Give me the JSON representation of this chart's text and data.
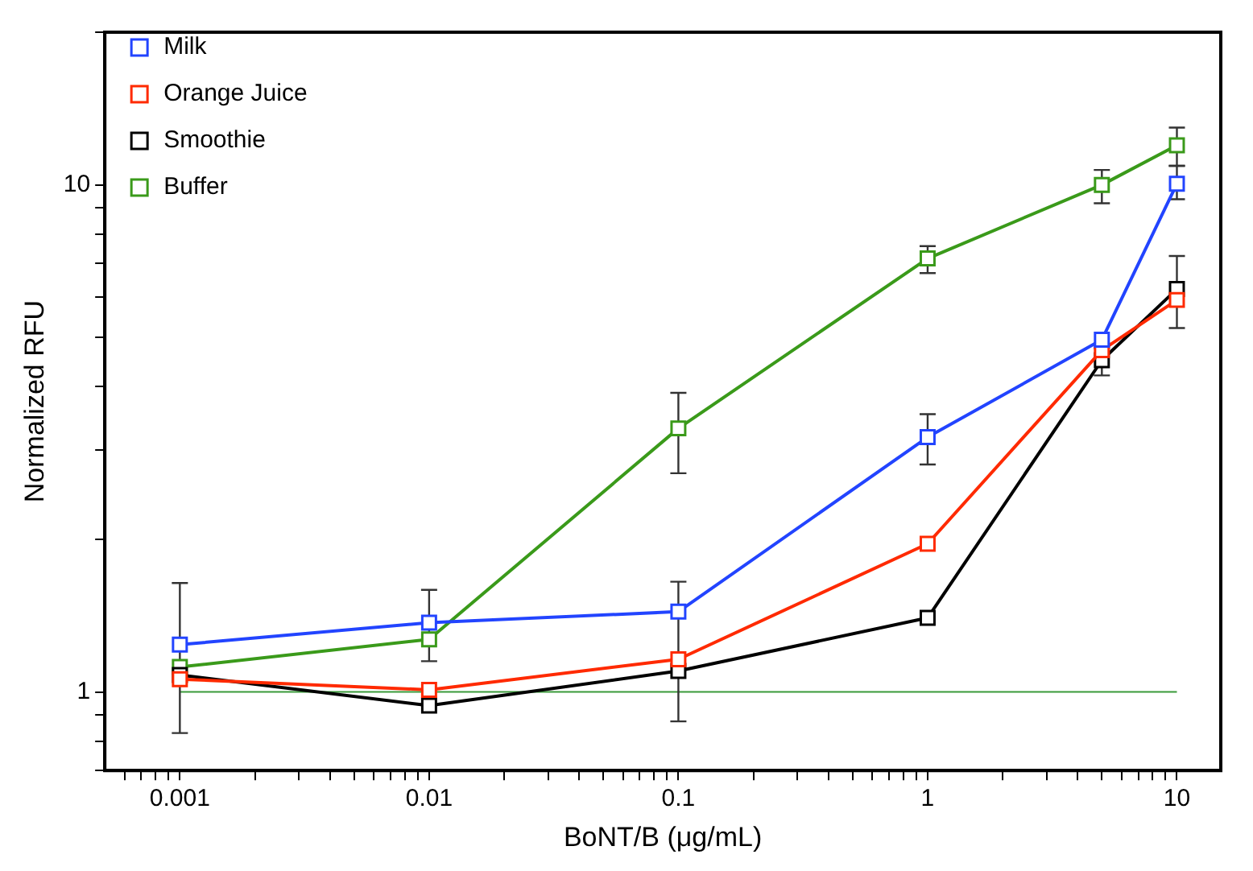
{
  "chart_data": {
    "type": "line",
    "xlabel": "BoNT/B (μg/mL)",
    "ylabel": "Normalized RFU",
    "log": "xy",
    "marker": "square",
    "line_style": "solid",
    "grid": false,
    "legend": "top left",
    "x": [
      0.001,
      0.01,
      0.1,
      1,
      5,
      10
    ],
    "xlim": [
      0.0005,
      15
    ],
    "ylim": [
      0.7,
      20
    ],
    "xticks": [
      0.001,
      0.01,
      0.1,
      1,
      10,
      {
        "value": 0.0006,
        "label": null
      },
      {
        "value": 0.0007,
        "label": null
      },
      {
        "value": 0.0008,
        "label": null
      },
      {
        "value": 0.0009,
        "label": null
      },
      {
        "value": 0.002,
        "label": null
      },
      {
        "value": 0.003,
        "label": null
      },
      {
        "value": 0.004,
        "label": null
      },
      {
        "value": 0.005,
        "label": null
      },
      {
        "value": 0.006,
        "label": null
      },
      {
        "value": 0.007,
        "label": null
      },
      {
        "value": 0.008,
        "label": null
      },
      {
        "value": 0.009,
        "label": null
      },
      {
        "value": 0.02,
        "label": null
      },
      {
        "value": 0.03,
        "label": null
      },
      {
        "value": 0.04,
        "label": null
      },
      {
        "value": 0.05,
        "label": null
      },
      {
        "value": 0.06,
        "label": null
      },
      {
        "value": 0.07,
        "label": null
      },
      {
        "value": 0.08,
        "label": null
      },
      {
        "value": 0.09,
        "label": null
      },
      {
        "value": 0.2,
        "label": null
      },
      {
        "value": 0.3,
        "label": null
      },
      {
        "value": 0.4,
        "label": null
      },
      {
        "value": 0.5,
        "label": null
      },
      {
        "value": 0.6,
        "label": null
      },
      {
        "value": 0.7,
        "label": null
      },
      {
        "value": 0.8,
        "label": null
      },
      {
        "value": 0.9,
        "label": null
      },
      {
        "value": 2,
        "label": null
      },
      {
        "value": 3,
        "label": null
      },
      {
        "value": 4,
        "label": null
      },
      {
        "value": 5,
        "label": null
      },
      {
        "value": 6,
        "label": null
      },
      {
        "value": 7,
        "label": null
      },
      {
        "value": 8,
        "label": null
      },
      {
        "value": 9,
        "label": null
      }
    ],
    "yticks": [
      1,
      10,
      {
        "value": 0.7,
        "label": null
      },
      {
        "value": 0.8,
        "label": null
      },
      {
        "value": 0.9,
        "label": null
      },
      {
        "value": 2,
        "label": null
      },
      {
        "value": 3,
        "label": null
      },
      {
        "value": 4,
        "label": null
      },
      {
        "value": 5,
        "label": null
      },
      {
        "value": 6,
        "label": null
      },
      {
        "value": 7,
        "label": null
      },
      {
        "value": 8,
        "label": null
      },
      {
        "value": 9,
        "label": null
      },
      {
        "value": 20,
        "label": null
      }
    ],
    "ref_lines": [
      {
        "axis": "y",
        "value": 1,
        "label": null,
        "color": "#3a9a3a"
      }
    ],
    "series": [
      {
        "name": "Milk",
        "color": "#2244ff",
        "values": [
          1.24,
          1.37,
          1.44,
          3.18,
          4.95,
          10.05
        ],
        "errors": [
          null,
          [
            1.15,
            1.59
          ],
          null,
          [
            2.81,
            3.53
          ],
          null,
          [
            9.37,
            10.9
          ]
        ]
      },
      {
        "name": "Orange Juice",
        "color": "#ff2a00",
        "values": [
          1.06,
          1.01,
          1.16,
          1.96,
          4.72,
          5.93
        ],
        "errors": [
          null,
          null,
          null,
          null,
          null,
          null
        ]
      },
      {
        "name": "Smoothie",
        "color": "#000000",
        "values": [
          1.08,
          0.94,
          1.1,
          1.4,
          4.51,
          6.23
        ],
        "errors": [
          [
            0.83,
            1.64
          ],
          null,
          [
            0.875,
            1.65
          ],
          null,
          [
            4.21,
            4.76
          ],
          [
            5.22,
            7.24
          ]
        ]
      },
      {
        "name": "Buffer",
        "color": "#3a9a1a",
        "values": [
          1.12,
          1.27,
          3.31,
          7.16,
          10.0,
          11.97
        ],
        "errors": [
          null,
          null,
          [
            2.7,
            3.89
          ],
          [
            6.7,
            7.57
          ],
          [
            9.2,
            10.7
          ],
          [
            10.9,
            12.97
          ]
        ]
      }
    ]
  }
}
